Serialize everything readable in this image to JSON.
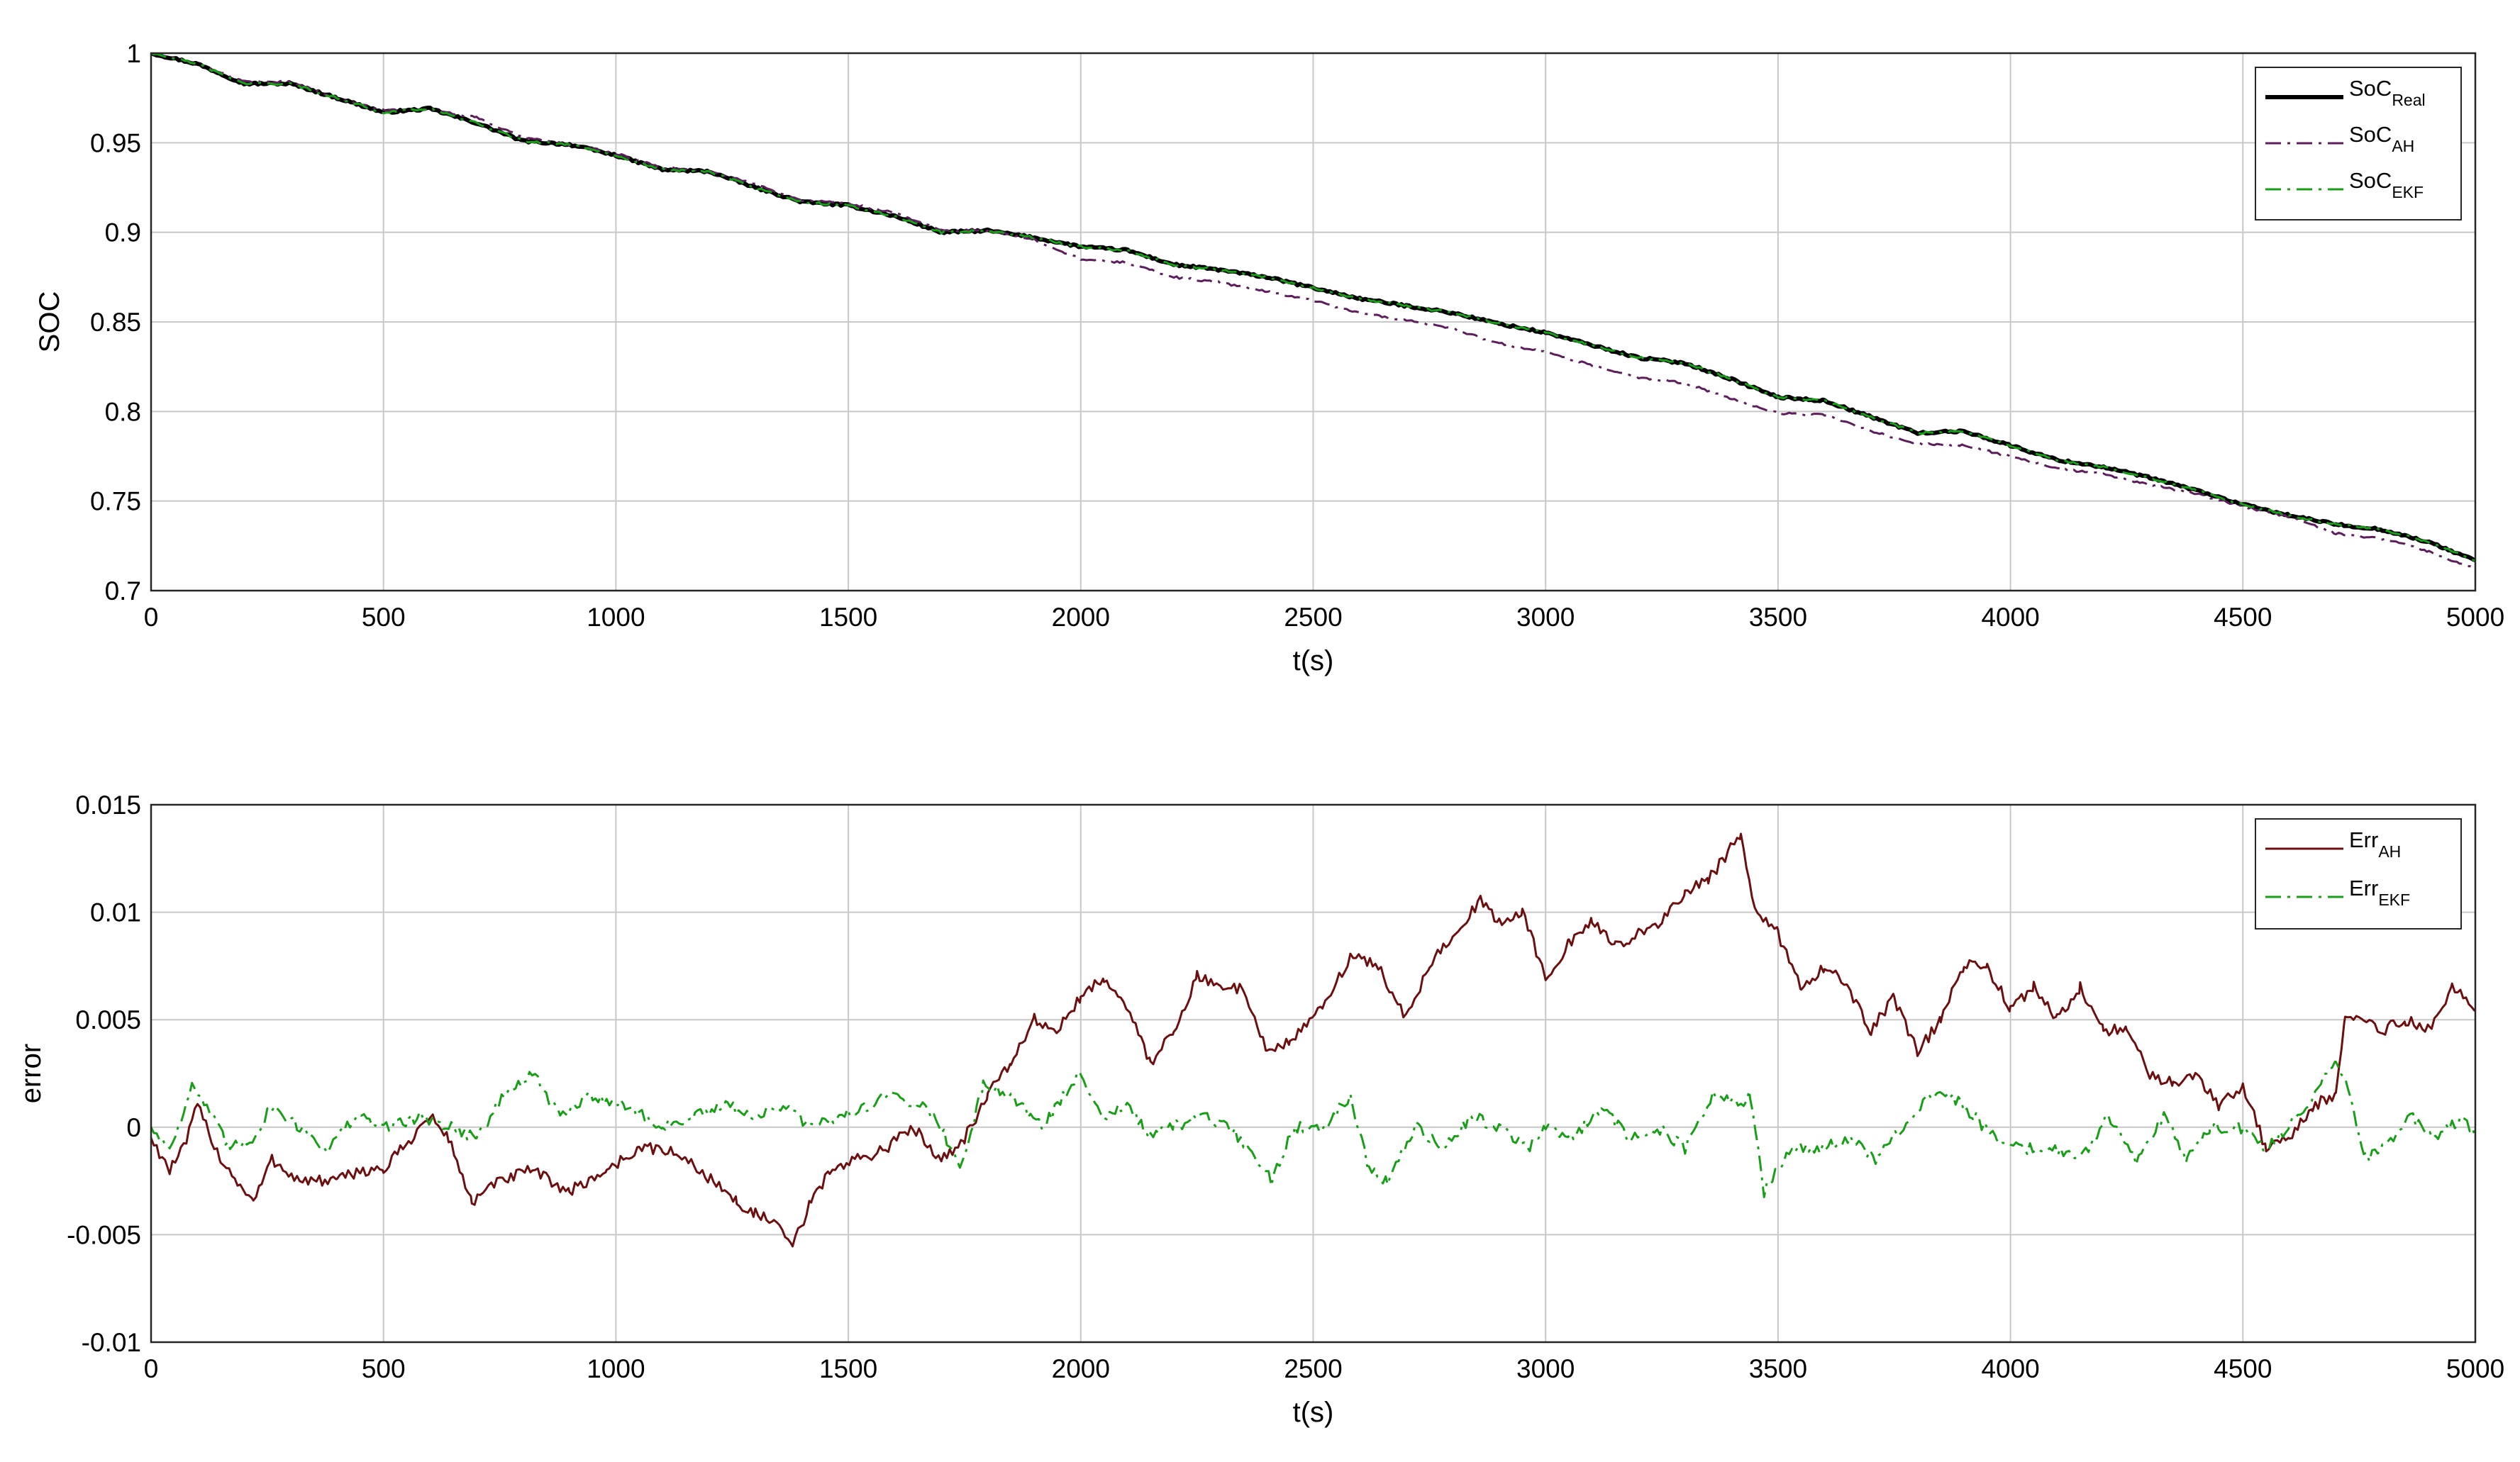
{
  "chart_data": [
    {
      "type": "line",
      "xlabel": "t(s)",
      "ylabel": "SOC",
      "xlim": [
        0,
        5000
      ],
      "ylim": [
        0.7,
        1
      ],
      "xticks": [
        0,
        500,
        1000,
        1500,
        2000,
        2500,
        3000,
        3500,
        4000,
        4500,
        5000
      ],
      "yticks": [
        0.7,
        0.75,
        0.8,
        0.85,
        0.9,
        0.95,
        1
      ],
      "ytick_labels": [
        "0.7",
        "0.75",
        "0.8",
        "0.85",
        "0.9",
        "0.95",
        "1"
      ],
      "grid": true,
      "legend_position": "top-right",
      "x": [
        0,
        100,
        200,
        300,
        400,
        500,
        600,
        700,
        800,
        900,
        1000,
        1100,
        1200,
        1300,
        1400,
        1500,
        1600,
        1700,
        1800,
        1900,
        2000,
        2100,
        2200,
        2300,
        2400,
        2500,
        2600,
        2700,
        2800,
        2900,
        3000,
        3100,
        3200,
        3300,
        3400,
        3500,
        3600,
        3700,
        3800,
        3900,
        4000,
        4100,
        4200,
        4300,
        4400,
        4500,
        4600,
        4700,
        4800,
        4900,
        5000
      ],
      "series": [
        {
          "name": "SoC",
          "sub": "Real",
          "color": "#000000",
          "style": "solid",
          "width": 6,
          "values": [
            1.0,
            0.994,
            0.983,
            0.983,
            0.975,
            0.967,
            0.969,
            0.961,
            0.951,
            0.949,
            0.943,
            0.935,
            0.934,
            0.925,
            0.917,
            0.915,
            0.909,
            0.9,
            0.901,
            0.897,
            0.892,
            0.89,
            0.882,
            0.879,
            0.875,
            0.869,
            0.863,
            0.859,
            0.855,
            0.849,
            0.844,
            0.837,
            0.83,
            0.827,
            0.818,
            0.808,
            0.806,
            0.797,
            0.788,
            0.789,
            0.781,
            0.773,
            0.769,
            0.763,
            0.756,
            0.748,
            0.742,
            0.737,
            0.734,
            0.727,
            0.717
          ]
        },
        {
          "name": "SoC",
          "sub": "AH",
          "color": "#5c1f5c",
          "style": "dashdot",
          "width": 3,
          "values": [
            1.0,
            0.994,
            0.984,
            0.984,
            0.975,
            0.968,
            0.969,
            0.964,
            0.953,
            0.949,
            0.944,
            0.936,
            0.934,
            0.927,
            0.918,
            0.916,
            0.911,
            0.901,
            0.901,
            0.896,
            0.885,
            0.883,
            0.875,
            0.872,
            0.867,
            0.862,
            0.855,
            0.851,
            0.846,
            0.838,
            0.833,
            0.826,
            0.819,
            0.816,
            0.807,
            0.799,
            0.798,
            0.789,
            0.782,
            0.781,
            0.775,
            0.768,
            0.765,
            0.759,
            0.754,
            0.747,
            0.741,
            0.732,
            0.729,
            0.722,
            0.712
          ]
        },
        {
          "name": "SoC",
          "sub": "EKF",
          "color": "#1a9e1a",
          "style": "dashdot",
          "width": 3,
          "values": [
            1.0,
            0.994,
            0.983,
            0.983,
            0.975,
            0.967,
            0.969,
            0.961,
            0.951,
            0.949,
            0.943,
            0.935,
            0.934,
            0.925,
            0.917,
            0.915,
            0.909,
            0.9,
            0.901,
            0.897,
            0.892,
            0.89,
            0.882,
            0.879,
            0.875,
            0.869,
            0.863,
            0.859,
            0.855,
            0.849,
            0.844,
            0.837,
            0.83,
            0.827,
            0.818,
            0.808,
            0.806,
            0.797,
            0.788,
            0.789,
            0.781,
            0.773,
            0.769,
            0.763,
            0.756,
            0.748,
            0.742,
            0.737,
            0.734,
            0.727,
            0.717
          ]
        }
      ]
    },
    {
      "type": "line",
      "xlabel": "t(s)",
      "ylabel": "error",
      "xlim": [
        0,
        5000
      ],
      "ylim": [
        -0.01,
        0.015
      ],
      "xticks": [
        0,
        500,
        1000,
        1500,
        2000,
        2500,
        3000,
        3500,
        4000,
        4500,
        5000
      ],
      "yticks": [
        -0.01,
        -0.005,
        0,
        0.005,
        0.01,
        0.015
      ],
      "ytick_labels": [
        "-0.01",
        "-0.005",
        "0",
        "0.005",
        "0.01",
        "0.015"
      ],
      "grid": true,
      "legend_position": "top-right",
      "series": [
        {
          "name": "Err",
          "sub": "AH",
          "color": "#6b0f0f",
          "style": "solid",
          "width": 3,
          "x": [
            0,
            40,
            70,
            100,
            150,
            220,
            260,
            320,
            400,
            450,
            500,
            560,
            600,
            640,
            690,
            750,
            820,
            900,
            980,
            1050,
            1100,
            1150,
            1210,
            1260,
            1300,
            1340,
            1380,
            1420,
            1460,
            1520,
            1580,
            1640,
            1700,
            1750,
            1800,
            1850,
            1900,
            1950,
            2000,
            2050,
            2100,
            2150,
            2200,
            2250,
            2300,
            2350,
            2400,
            2450,
            2520,
            2580,
            2640,
            2700,
            2750,
            2800,
            2860,
            2900,
            2950,
            3000,
            3050,
            3100,
            3150,
            3200,
            3250,
            3300,
            3350,
            3400,
            3420,
            3450,
            3500,
            3550,
            3600,
            3650,
            3700,
            3750,
            3800,
            3850,
            3900,
            3950,
            4000,
            4050,
            4100,
            4150,
            4200,
            4250,
            4300,
            4350,
            4400,
            4450,
            4500,
            4550,
            4600,
            4650,
            4700,
            4720,
            4760,
            4800,
            4850,
            4900,
            4950,
            5000
          ],
          "values": [
            -0.0005,
            -0.002,
            -0.001,
            0.001,
            -0.0015,
            -0.0035,
            -0.0015,
            -0.0025,
            -0.0025,
            -0.002,
            -0.002,
            -0.0005,
            0.0005,
            -0.0005,
            -0.0035,
            -0.0025,
            -0.002,
            -0.003,
            -0.002,
            -0.001,
            -0.001,
            -0.0015,
            -0.0025,
            -0.0035,
            -0.004,
            -0.0045,
            -0.0055,
            -0.0035,
            -0.002,
            -0.0015,
            -0.001,
            0.0,
            -0.0015,
            -0.0005,
            0.0015,
            0.003,
            0.005,
            0.0045,
            0.006,
            0.007,
            0.0055,
            0.003,
            0.0045,
            0.007,
            0.0065,
            0.0065,
            0.0035,
            0.004,
            0.0055,
            0.008,
            0.0075,
            0.005,
            0.0075,
            0.009,
            0.0105,
            0.0095,
            0.01,
            0.007,
            0.0085,
            0.0095,
            0.0085,
            0.009,
            0.0095,
            0.011,
            0.0115,
            0.013,
            0.0135,
            0.01,
            0.009,
            0.0065,
            0.0075,
            0.0065,
            0.0045,
            0.006,
            0.0035,
            0.005,
            0.0075,
            0.0075,
            0.0055,
            0.0065,
            0.005,
            0.0065,
            0.0045,
            0.0045,
            0.0025,
            0.002,
            0.0025,
            0.001,
            0.002,
            -0.001,
            -0.0005,
            0.001,
            0.0015,
            0.005,
            0.005,
            0.0045,
            0.005,
            0.0045,
            0.0065,
            0.0055
          ]
        },
        {
          "name": "Err",
          "sub": "EKF",
          "color": "#1a9e1a",
          "style": "dashdot",
          "width": 3,
          "x": [
            0,
            40,
            90,
            130,
            170,
            220,
            260,
            320,
            380,
            440,
            500,
            580,
            650,
            700,
            760,
            820,
            880,
            950,
            1020,
            1100,
            1170,
            1240,
            1300,
            1360,
            1420,
            1480,
            1540,
            1600,
            1660,
            1700,
            1740,
            1790,
            1850,
            1920,
            1980,
            2000,
            2050,
            2100,
            2150,
            2200,
            2260,
            2320,
            2380,
            2410,
            2460,
            2520,
            2580,
            2620,
            2660,
            2720,
            2780,
            2840,
            2900,
            2960,
            3000,
            3060,
            3120,
            3180,
            3240,
            3300,
            3360,
            3420,
            3440,
            3470,
            3530,
            3590,
            3650,
            3710,
            3770,
            3830,
            3870,
            3920,
            3970,
            4030,
            4090,
            4150,
            4210,
            4270,
            4330,
            4380,
            4430,
            4490,
            4550,
            4600,
            4650,
            4700,
            4720,
            4760,
            4800,
            4860,
            4920,
            4970,
            5000
          ],
          "values": [
            0.0,
            -0.001,
            0.002,
            0.0005,
            -0.001,
            -0.0005,
            0.001,
            0.0,
            -0.001,
            0.0005,
            0.0,
            0.0005,
            0.0,
            -0.0005,
            0.0015,
            0.0025,
            0.0005,
            0.0015,
            0.001,
            0.0,
            0.0005,
            0.001,
            0.0005,
            0.001,
            0.0,
            0.0005,
            0.001,
            0.0015,
            0.001,
            0.0,
            -0.002,
            0.002,
            0.0015,
            0.0,
            0.002,
            0.0025,
            0.0005,
            0.001,
            -0.0005,
            0.0,
            0.0005,
            0.0,
            -0.0015,
            -0.0025,
            0.0,
            0.0,
            0.0015,
            -0.002,
            -0.0025,
            0.0,
            -0.001,
            0.0005,
            0.0,
            -0.001,
            0.0,
            -0.0005,
            0.001,
            -0.0005,
            0.0,
            -0.001,
            0.0015,
            0.001,
            0.0015,
            -0.003,
            -0.001,
            -0.001,
            -0.0005,
            -0.0015,
            0.0,
            0.0015,
            0.0015,
            0.0005,
            -0.0005,
            -0.001,
            -0.001,
            -0.0015,
            0.0005,
            -0.0015,
            0.0005,
            -0.0015,
            0.0,
            0.0,
            -0.001,
            0.0,
            0.0015,
            0.003,
            0.0025,
            -0.0015,
            -0.001,
            0.0005,
            -0.0005,
            0.0005,
            -0.0005
          ]
        }
      ]
    }
  ]
}
